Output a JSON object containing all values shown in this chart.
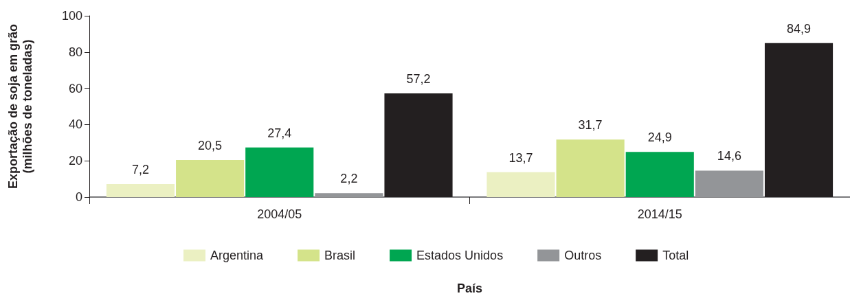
{
  "chart_data": {
    "type": "bar",
    "categories": [
      "2004/05",
      "2014/15"
    ],
    "series": [
      {
        "name": "Argentina",
        "color": "#ebf0c2",
        "values": [
          7.2,
          13.7
        ],
        "value_labels": [
          "7,2",
          "13,7"
        ]
      },
      {
        "name": "Brasil",
        "color": "#d4e38a",
        "values": [
          20.5,
          31.7
        ],
        "value_labels": [
          "20,5",
          "31,7"
        ]
      },
      {
        "name": "Estados Unidos",
        "color": "#00a651",
        "values": [
          27.4,
          24.9
        ],
        "value_labels": [
          "27,4",
          "24,9"
        ]
      },
      {
        "name": "Outros",
        "color": "#939598",
        "values": [
          2.2,
          14.6
        ],
        "value_labels": [
          "2,2",
          "14,6"
        ]
      },
      {
        "name": "Total",
        "color": "#231f20",
        "values": [
          57.2,
          84.9
        ],
        "value_labels": [
          "57,2",
          "84,9"
        ]
      }
    ],
    "xlabel": "País",
    "ylabel": "Exportação de soja em grão\n(milhões de toneladas)",
    "ylim": [
      0,
      100
    ],
    "yticks": [
      0,
      20,
      40,
      60,
      80,
      100
    ],
    "legend": "bottom"
  }
}
